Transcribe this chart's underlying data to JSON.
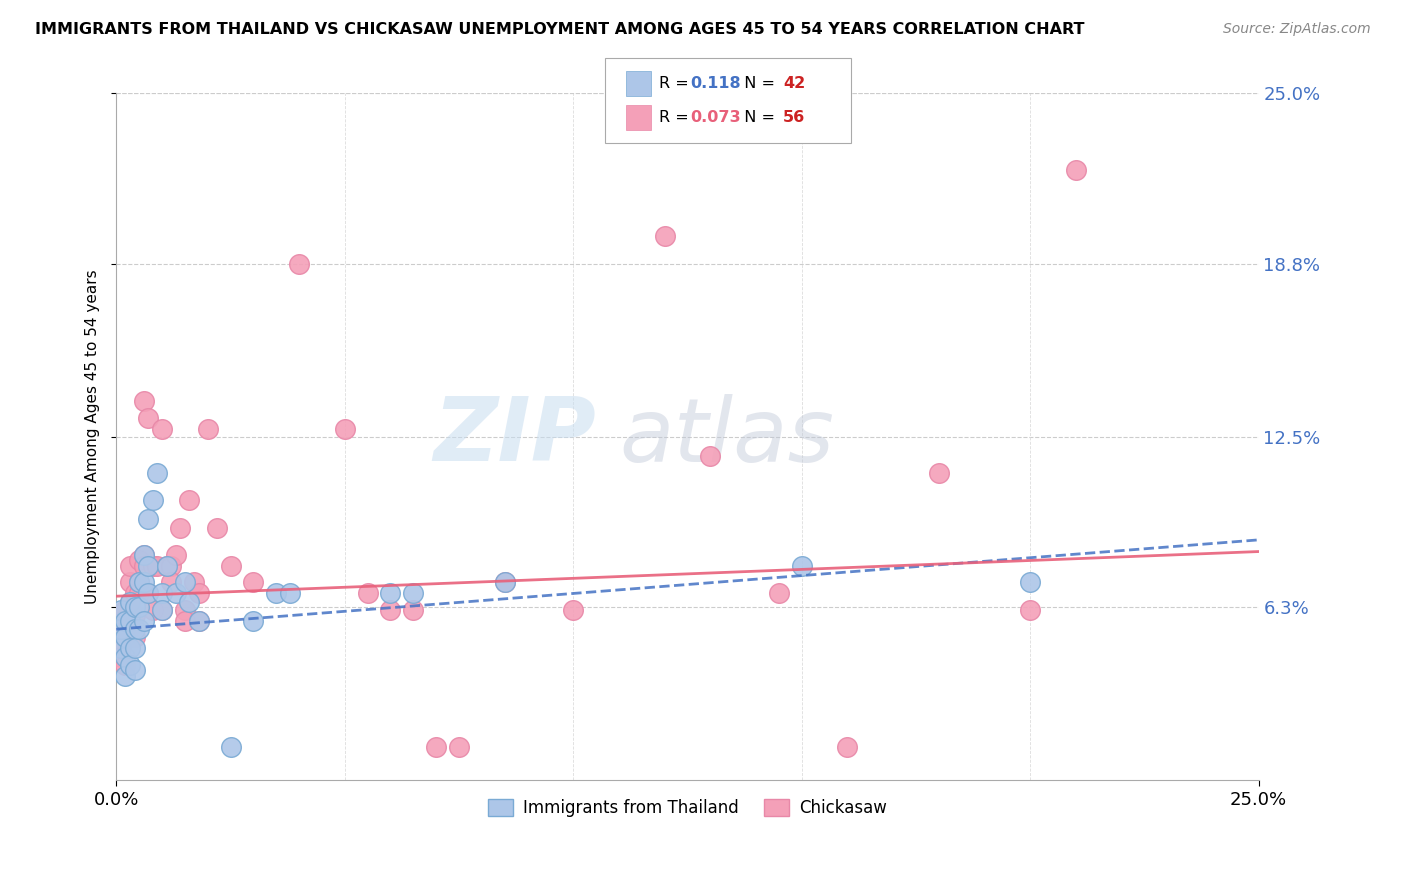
{
  "title": "IMMIGRANTS FROM THAILAND VS CHICKASAW UNEMPLOYMENT AMONG AGES 45 TO 54 YEARS CORRELATION CHART",
  "source": "Source: ZipAtlas.com",
  "ylabel": "Unemployment Among Ages 45 to 54 years",
  "xlim": [
    0.0,
    0.25
  ],
  "ylim": [
    0.0,
    0.25
  ],
  "ytick_labels_right": [
    "6.3%",
    "12.5%",
    "18.8%",
    "25.0%"
  ],
  "ytick_values_right": [
    0.063,
    0.125,
    0.188,
    0.25
  ],
  "xtick_labels": [
    "0.0%",
    "25.0%"
  ],
  "xtick_positions": [
    0.0,
    0.25
  ],
  "series1_color": "#adc6e8",
  "series2_color": "#f4a0b8",
  "series1_edge_color": "#7aaad4",
  "series2_edge_color": "#e888a8",
  "series1_label": "Immigrants from Thailand",
  "series2_label": "Chickasaw",
  "series1_R": "0.118",
  "series1_N": "42",
  "series2_R": "0.073",
  "series2_N": "56",
  "series1_line_color": "#4472c4",
  "series2_line_color": "#e8607a",
  "series1_R_color": "#4472c4",
  "series2_R_color": "#e8607a",
  "N_color": "#cc2222",
  "watermark_color1": "#c8ddf0",
  "watermark_color2": "#c0c8d8",
  "background_color": "#ffffff",
  "series1_x": [
    0.001,
    0.001,
    0.001,
    0.002,
    0.002,
    0.002,
    0.002,
    0.003,
    0.003,
    0.003,
    0.003,
    0.004,
    0.004,
    0.004,
    0.004,
    0.005,
    0.005,
    0.005,
    0.006,
    0.006,
    0.006,
    0.007,
    0.007,
    0.007,
    0.008,
    0.009,
    0.01,
    0.01,
    0.011,
    0.013,
    0.015,
    0.016,
    0.018,
    0.025,
    0.03,
    0.035,
    0.038,
    0.06,
    0.065,
    0.085,
    0.15,
    0.2
  ],
  "series1_y": [
    0.048,
    0.055,
    0.062,
    0.058,
    0.052,
    0.045,
    0.038,
    0.065,
    0.058,
    0.048,
    0.042,
    0.063,
    0.055,
    0.048,
    0.04,
    0.072,
    0.063,
    0.055,
    0.082,
    0.072,
    0.058,
    0.095,
    0.078,
    0.068,
    0.102,
    0.112,
    0.068,
    0.062,
    0.078,
    0.068,
    0.072,
    0.065,
    0.058,
    0.012,
    0.058,
    0.068,
    0.068,
    0.068,
    0.068,
    0.072,
    0.078,
    0.072
  ],
  "series2_x": [
    0.001,
    0.001,
    0.001,
    0.002,
    0.002,
    0.002,
    0.003,
    0.003,
    0.003,
    0.004,
    0.004,
    0.004,
    0.005,
    0.005,
    0.005,
    0.006,
    0.006,
    0.006,
    0.007,
    0.007,
    0.008,
    0.008,
    0.009,
    0.01,
    0.01,
    0.011,
    0.012,
    0.012,
    0.013,
    0.014,
    0.015,
    0.015,
    0.016,
    0.017,
    0.018,
    0.018,
    0.02,
    0.022,
    0.025,
    0.03,
    0.04,
    0.05,
    0.055,
    0.06,
    0.065,
    0.07,
    0.075,
    0.085,
    0.1,
    0.12,
    0.13,
    0.145,
    0.16,
    0.18,
    0.2,
    0.21
  ],
  "series2_y": [
    0.058,
    0.05,
    0.045,
    0.062,
    0.055,
    0.042,
    0.065,
    0.072,
    0.078,
    0.068,
    0.06,
    0.052,
    0.068,
    0.08,
    0.072,
    0.082,
    0.078,
    0.138,
    0.132,
    0.068,
    0.078,
    0.062,
    0.078,
    0.128,
    0.062,
    0.078,
    0.078,
    0.072,
    0.082,
    0.092,
    0.062,
    0.058,
    0.102,
    0.072,
    0.068,
    0.058,
    0.128,
    0.092,
    0.078,
    0.072,
    0.188,
    0.128,
    0.068,
    0.062,
    0.062,
    0.012,
    0.012,
    0.072,
    0.062,
    0.198,
    0.118,
    0.068,
    0.012,
    0.112,
    0.062,
    0.222
  ]
}
